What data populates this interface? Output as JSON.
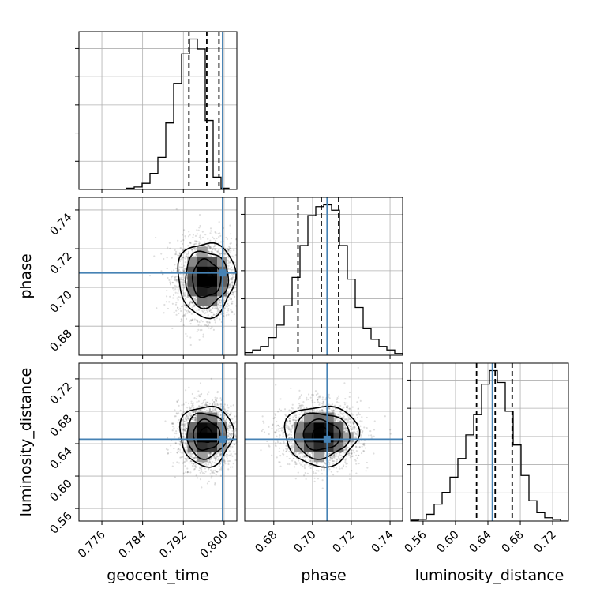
{
  "chart_data": {
    "type": "corner",
    "parameters": [
      "geocent_time",
      "phase",
      "luminosity_distance"
    ],
    "axis_labels": {
      "geocent_time": "geocent_time",
      "phase": "phase",
      "luminosity_distance": "luminosity_distance"
    },
    "ranges": {
      "geocent_time": [
        0.7715,
        0.8025
      ],
      "phase": [
        0.665,
        0.7465
      ],
      "luminosity_distance": [
        0.5445,
        0.7394
      ]
    },
    "ticks": {
      "geocent_time": [
        0.776,
        0.784,
        0.792,
        0.8
      ],
      "phase": [
        0.68,
        0.7,
        0.72,
        0.74
      ],
      "luminosity_distance": [
        0.56,
        0.6,
        0.64,
        0.68,
        0.72
      ]
    },
    "tick_labels": {
      "geocent_time": [
        "0.776",
        "0.784",
        "0.792",
        "0.800"
      ],
      "phase": [
        "0.68",
        "0.70",
        "0.72",
        "0.74"
      ],
      "luminosity_distance": [
        "0.56",
        "0.60",
        "0.64",
        "0.68",
        "0.72"
      ]
    },
    "truths": {
      "geocent_time": 0.7997,
      "phase": 0.7075,
      "luminosity_distance": 0.6455
    },
    "truth_color": "#4682b4",
    "quantiles": {
      "geocent_time": [
        0.7931,
        0.7966,
        0.799
      ],
      "phase": [
        0.6925,
        0.7045,
        0.7135
      ],
      "luminosity_distance": [
        0.626,
        0.649,
        0.67
      ]
    },
    "histograms": {
      "geocent_time": {
        "edges_range": [
          0.7715,
          0.8025
        ],
        "counts": [
          0,
          0,
          0,
          0,
          0,
          0,
          0.5,
          1,
          2.5,
          6.5,
          13,
          27,
          43,
          55,
          61,
          57,
          28,
          5,
          0.5,
          0
        ]
      },
      "phase": {
        "edges_range": [
          0.665,
          0.7465
        ],
        "counts": [
          1.5,
          3,
          5,
          10,
          17,
          28,
          44,
          62,
          79,
          84,
          85,
          82,
          62,
          43,
          27,
          15,
          9,
          5,
          3,
          1
        ]
      },
      "luminosity_distance": {
        "edges_range": [
          0.5445,
          0.7394
        ],
        "counts": [
          0.5,
          1,
          4,
          10,
          17,
          26,
          37,
          51,
          63,
          81,
          89,
          82,
          65,
          45,
          27,
          12,
          5,
          2,
          1,
          0
        ]
      }
    },
    "contours": {
      "geocent_time|phase": {
        "center": [
          0.7965,
          0.7045
        ],
        "sigma": [
          0.0028,
          0.0096
        ],
        "levels": [
          0.5,
          1.0,
          1.5,
          2.0
        ]
      },
      "geocent_time|luminosity_distance": {
        "center": [
          0.7965,
          0.6505
        ],
        "sigma": [
          0.0026,
          0.0185
        ],
        "levels": [
          0.5,
          1.0,
          1.5,
          2.0
        ]
      },
      "phase|luminosity_distance": {
        "center": [
          0.7045,
          0.6505
        ],
        "sigma": [
          0.0095,
          0.0185
        ],
        "levels": [
          0.5,
          1.0,
          1.5,
          2.0
        ]
      }
    },
    "grid": true,
    "legend": "none"
  }
}
